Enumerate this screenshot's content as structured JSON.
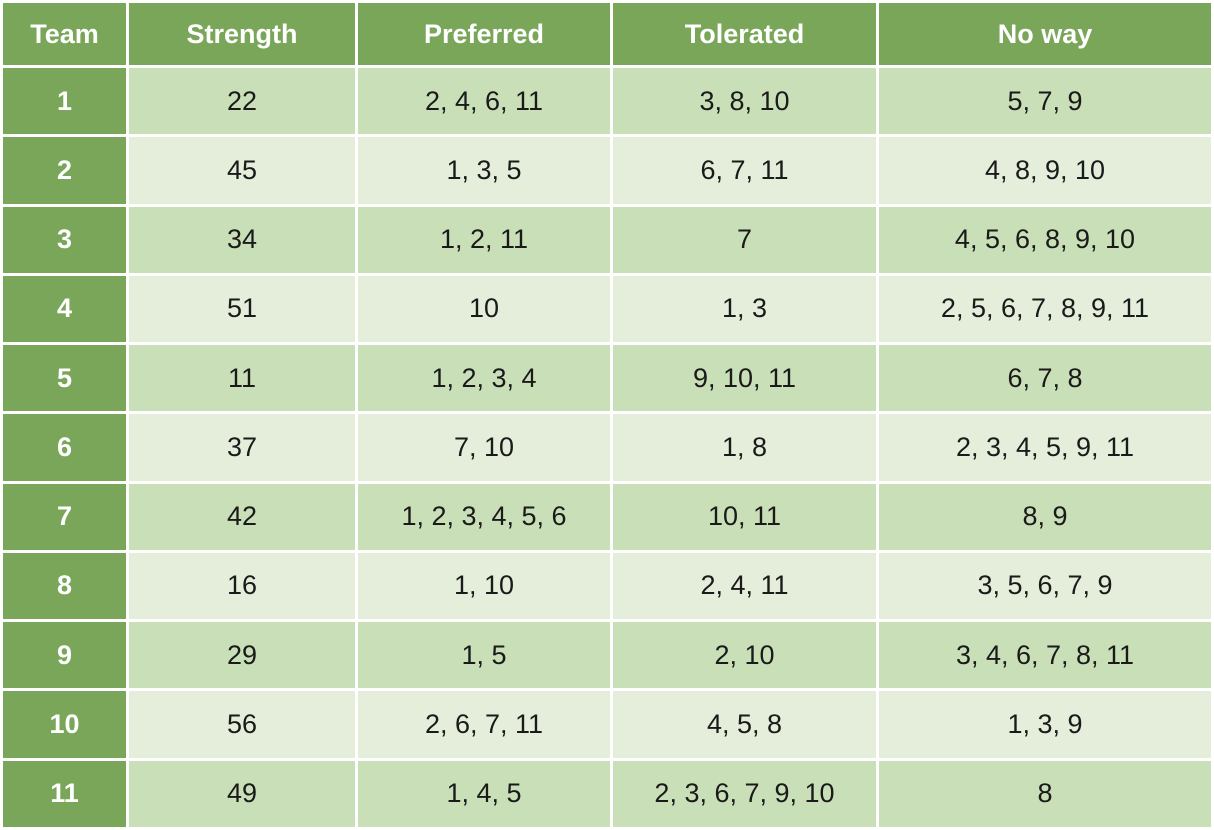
{
  "colors": {
    "header_bg": "#79a659",
    "row_odd": "#c9dfb7",
    "row_even": "#e4eedb",
    "header_text": "#ffffff",
    "body_text": "#1a1a1a"
  },
  "table": {
    "headers": [
      "Team",
      "Strength",
      "Preferred",
      "Tolerated",
      "No way"
    ],
    "rows": [
      {
        "team": "1",
        "strength": "22",
        "preferred": "2, 4, 6, 11",
        "tolerated": "3, 8, 10",
        "no_way": "5, 7, 9"
      },
      {
        "team": "2",
        "strength": "45",
        "preferred": "1, 3, 5",
        "tolerated": "6, 7, 11",
        "no_way": "4, 8, 9, 10"
      },
      {
        "team": "3",
        "strength": "34",
        "preferred": "1, 2, 11",
        "tolerated": "7",
        "no_way": "4, 5, 6, 8, 9, 10"
      },
      {
        "team": "4",
        "strength": "51",
        "preferred": "10",
        "tolerated": "1, 3",
        "no_way": "2, 5, 6, 7, 8, 9, 11"
      },
      {
        "team": "5",
        "strength": "11",
        "preferred": "1, 2, 3, 4",
        "tolerated": "9, 10, 11",
        "no_way": "6, 7, 8"
      },
      {
        "team": "6",
        "strength": "37",
        "preferred": "7, 10",
        "tolerated": "1, 8",
        "no_way": "2, 3, 4, 5, 9, 11"
      },
      {
        "team": "7",
        "strength": "42",
        "preferred": "1, 2, 3, 4, 5, 6",
        "tolerated": "10, 11",
        "no_way": "8, 9"
      },
      {
        "team": "8",
        "strength": "16",
        "preferred": "1, 10",
        "tolerated": "2, 4, 11",
        "no_way": "3, 5, 6, 7, 9"
      },
      {
        "team": "9",
        "strength": "29",
        "preferred": "1, 5",
        "tolerated": "2, 10",
        "no_way": "3, 4, 6, 7, 8, 11"
      },
      {
        "team": "10",
        "strength": "56",
        "preferred": "2, 6, 7, 11",
        "tolerated": "4, 5, 8",
        "no_way": "1, 3, 9"
      },
      {
        "team": "11",
        "strength": "49",
        "preferred": "1, 4, 5",
        "tolerated": "2, 3, 6, 7, 9, 10",
        "no_way": "8"
      }
    ]
  }
}
